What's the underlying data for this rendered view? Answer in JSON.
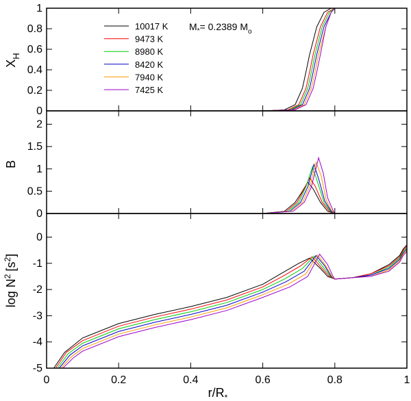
{
  "chart_data": [
    {
      "type": "line",
      "panel": "top",
      "ylabel": "X",
      "ylabel_sub": "H",
      "xlim": [
        0,
        1
      ],
      "ylim": [
        0,
        1
      ],
      "yticks": [
        0,
        0.2,
        0.4,
        0.6,
        0.8,
        1
      ],
      "ytick_labels": [
        "0",
        "0.2",
        "0.4",
        "0.6",
        "0.8",
        "1"
      ],
      "annotation": {
        "prefix": "M",
        "sub_star": "*",
        "mid": "= 0.2389 M",
        "sub_o": "o"
      },
      "legend": {
        "placement": "top-left",
        "entries": [
          "10017 K",
          "9473 K",
          "8980 K",
          "8420 K",
          "7940 K",
          "7425 K"
        ]
      },
      "series": [
        {
          "name": "10017 K",
          "color": "#000000",
          "x": [
            0.6,
            0.66,
            0.69,
            0.71,
            0.72,
            0.73,
            0.75,
            0.77,
            0.79,
            1.0
          ],
          "values": [
            0,
            0.01,
            0.06,
            0.22,
            0.38,
            0.55,
            0.82,
            0.96,
            1,
            1
          ]
        },
        {
          "name": "9473 K",
          "color": "#ff0000",
          "x": [
            0.6,
            0.67,
            0.7,
            0.72,
            0.73,
            0.74,
            0.76,
            0.78,
            0.8,
            1.0
          ],
          "values": [
            0,
            0.01,
            0.06,
            0.22,
            0.38,
            0.55,
            0.82,
            0.96,
            1,
            1
          ]
        },
        {
          "name": "8980 K",
          "color": "#00cc00",
          "x": [
            0.6,
            0.675,
            0.705,
            0.725,
            0.735,
            0.745,
            0.765,
            0.785,
            0.8,
            1.0
          ],
          "values": [
            0,
            0.01,
            0.06,
            0.22,
            0.38,
            0.55,
            0.82,
            0.96,
            1,
            1
          ]
        },
        {
          "name": "8420 K",
          "color": "#0000cc",
          "x": [
            0.6,
            0.68,
            0.71,
            0.73,
            0.74,
            0.75,
            0.77,
            0.79,
            0.8,
            1.0
          ],
          "values": [
            0,
            0.01,
            0.06,
            0.22,
            0.38,
            0.55,
            0.82,
            0.96,
            1,
            1
          ]
        },
        {
          "name": "7940 K",
          "color": "#ff9900",
          "x": [
            0.6,
            0.685,
            0.715,
            0.735,
            0.745,
            0.755,
            0.775,
            0.79,
            0.8,
            1.0
          ],
          "values": [
            0,
            0.01,
            0.06,
            0.22,
            0.38,
            0.55,
            0.82,
            0.96,
            1,
            1
          ]
        },
        {
          "name": "7425 K",
          "color": "#9900cc",
          "x": [
            0.6,
            0.69,
            0.72,
            0.74,
            0.75,
            0.76,
            0.775,
            0.79,
            0.8,
            1.0
          ],
          "values": [
            0,
            0.01,
            0.06,
            0.22,
            0.38,
            0.55,
            0.82,
            0.96,
            1,
            1
          ]
        }
      ]
    },
    {
      "type": "line",
      "panel": "middle",
      "ylabel": "B",
      "xlim": [
        0,
        1
      ],
      "ylim": [
        0,
        2.3
      ],
      "yticks": [
        0,
        0.5,
        1,
        1.5,
        2
      ],
      "ytick_labels": [
        "0",
        "0.5",
        "1",
        "1.5",
        "2"
      ],
      "series": [
        {
          "name": "10017 K",
          "color": "#000000",
          "x": [
            0.6,
            0.66,
            0.69,
            0.71,
            0.725,
            0.74,
            0.76,
            0.78,
            0.8
          ],
          "values": [
            0,
            0.05,
            0.25,
            0.5,
            0.7,
            0.55,
            0.25,
            0.05,
            0
          ]
        },
        {
          "name": "9473 K",
          "color": "#ff0000",
          "x": [
            0.6,
            0.665,
            0.695,
            0.715,
            0.73,
            0.745,
            0.765,
            0.785,
            0.8
          ],
          "values": [
            0,
            0.05,
            0.25,
            0.55,
            0.8,
            0.62,
            0.25,
            0.05,
            0
          ]
        },
        {
          "name": "8980 K",
          "color": "#00cc00",
          "x": [
            0.6,
            0.67,
            0.7,
            0.72,
            0.738,
            0.752,
            0.77,
            0.788,
            0.8
          ],
          "values": [
            0,
            0.05,
            0.25,
            0.6,
            1.05,
            0.7,
            0.25,
            0.05,
            0
          ]
        },
        {
          "name": "8420 K",
          "color": "#0000cc",
          "x": [
            0.6,
            0.675,
            0.705,
            0.725,
            0.742,
            0.756,
            0.772,
            0.79,
            0.8
          ],
          "values": [
            0,
            0.05,
            0.25,
            0.6,
            1.1,
            0.75,
            0.28,
            0.05,
            0
          ]
        },
        {
          "name": "7940 K",
          "color": "#ff9900",
          "x": [
            0.6,
            0.68,
            0.71,
            0.73,
            0.748,
            0.762,
            0.776,
            0.792,
            0.8
          ],
          "values": [
            0,
            0.05,
            0.25,
            0.6,
            1.15,
            0.85,
            0.3,
            0.06,
            0
          ]
        },
        {
          "name": "7425 K",
          "color": "#9900cc",
          "x": [
            0.6,
            0.685,
            0.715,
            0.735,
            0.755,
            0.768,
            0.78,
            0.795,
            0.8
          ],
          "values": [
            0,
            0.05,
            0.25,
            0.6,
            1.25,
            0.9,
            0.35,
            0.07,
            0
          ]
        }
      ]
    },
    {
      "type": "line",
      "panel": "bottom",
      "ylabel": "log N",
      "ylabel_sup": "2",
      "ylabel_unit": "[s",
      "ylabel_unit_sup": "2",
      "ylabel_unit_close": "]",
      "xlabel": "r/R",
      "xlabel_sub": "*",
      "xlim": [
        0,
        1
      ],
      "ylim": [
        -5,
        0.9
      ],
      "xticks": [
        0,
        0.2,
        0.4,
        0.6,
        0.8,
        1
      ],
      "xtick_labels": [
        "0",
        "0.2",
        "0.4",
        "0.6",
        "0.8",
        "1"
      ],
      "yticks": [
        -5,
        -4,
        -3,
        -2,
        -1,
        0
      ],
      "ytick_labels": [
        "-5",
        "-4",
        "-3",
        "-2",
        "-1",
        "0"
      ],
      "series": [
        {
          "name": "10017 K",
          "color": "#000000",
          "x": [
            0.02,
            0.05,
            0.1,
            0.2,
            0.3,
            0.4,
            0.5,
            0.6,
            0.65,
            0.7,
            0.73,
            0.76,
            0.78,
            0.8,
            0.85,
            0.9,
            0.95,
            0.98,
            0.99,
            1.0
          ],
          "values": [
            -5,
            -4.4,
            -3.85,
            -3.3,
            -2.95,
            -2.65,
            -2.3,
            -1.8,
            -1.4,
            -1.0,
            -0.8,
            -1.2,
            -1.5,
            -1.6,
            -1.55,
            -1.4,
            -1.05,
            -0.7,
            -0.45,
            -0.3
          ]
        },
        {
          "name": "9473 K",
          "color": "#ff0000",
          "x": [
            0.025,
            0.055,
            0.1,
            0.2,
            0.3,
            0.4,
            0.5,
            0.6,
            0.655,
            0.705,
            0.737,
            0.765,
            0.785,
            0.8,
            0.85,
            0.9,
            0.95,
            0.98,
            0.99,
            1.0
          ],
          "values": [
            -5,
            -4.4,
            -3.95,
            -3.4,
            -3.05,
            -2.75,
            -2.4,
            -1.9,
            -1.5,
            -1.1,
            -0.75,
            -1.2,
            -1.5,
            -1.6,
            -1.55,
            -1.4,
            -1.1,
            -0.75,
            -0.5,
            -0.35
          ]
        },
        {
          "name": "8980 K",
          "color": "#00cc00",
          "x": [
            0.03,
            0.06,
            0.1,
            0.2,
            0.3,
            0.4,
            0.5,
            0.6,
            0.66,
            0.71,
            0.743,
            0.768,
            0.788,
            0.8,
            0.85,
            0.9,
            0.95,
            0.98,
            0.99,
            1.0
          ],
          "values": [
            -5,
            -4.45,
            -4.05,
            -3.5,
            -3.15,
            -2.85,
            -2.5,
            -2.0,
            -1.6,
            -1.2,
            -0.72,
            -1.15,
            -1.5,
            -1.6,
            -1.55,
            -1.45,
            -1.15,
            -0.8,
            -0.55,
            -0.4
          ]
        },
        {
          "name": "8420 K",
          "color": "#0000cc",
          "x": [
            0.035,
            0.065,
            0.1,
            0.2,
            0.3,
            0.4,
            0.5,
            0.6,
            0.665,
            0.715,
            0.748,
            0.772,
            0.79,
            0.8,
            0.85,
            0.9,
            0.95,
            0.98,
            0.99,
            1.0
          ],
          "values": [
            -5,
            -4.5,
            -4.15,
            -3.6,
            -3.25,
            -2.95,
            -2.6,
            -2.1,
            -1.7,
            -1.3,
            -0.7,
            -1.1,
            -1.5,
            -1.6,
            -1.55,
            -1.45,
            -1.2,
            -0.85,
            -0.6,
            -0.45
          ]
        },
        {
          "name": "7940 K",
          "color": "#ff9900",
          "x": [
            0.04,
            0.07,
            0.1,
            0.2,
            0.3,
            0.4,
            0.5,
            0.6,
            0.67,
            0.72,
            0.752,
            0.775,
            0.792,
            0.8,
            0.85,
            0.9,
            0.95,
            0.98,
            0.99,
            1.0
          ],
          "values": [
            -5,
            -4.55,
            -4.25,
            -3.7,
            -3.35,
            -3.05,
            -2.7,
            -2.2,
            -1.8,
            -1.4,
            -0.68,
            -1.1,
            -1.5,
            -1.6,
            -1.55,
            -1.5,
            -1.25,
            -0.9,
            -0.65,
            -0.5
          ]
        },
        {
          "name": "7425 K",
          "color": "#9900cc",
          "x": [
            0.045,
            0.075,
            0.1,
            0.2,
            0.3,
            0.4,
            0.5,
            0.6,
            0.675,
            0.725,
            0.758,
            0.78,
            0.795,
            0.8,
            0.85,
            0.9,
            0.95,
            0.98,
            0.99,
            1.0
          ],
          "values": [
            -5,
            -4.6,
            -4.35,
            -3.8,
            -3.45,
            -3.15,
            -2.8,
            -2.3,
            -1.9,
            -1.5,
            -0.65,
            -1.05,
            -1.5,
            -1.6,
            -1.55,
            -1.5,
            -1.3,
            -0.95,
            -0.7,
            -0.55
          ]
        }
      ]
    }
  ]
}
